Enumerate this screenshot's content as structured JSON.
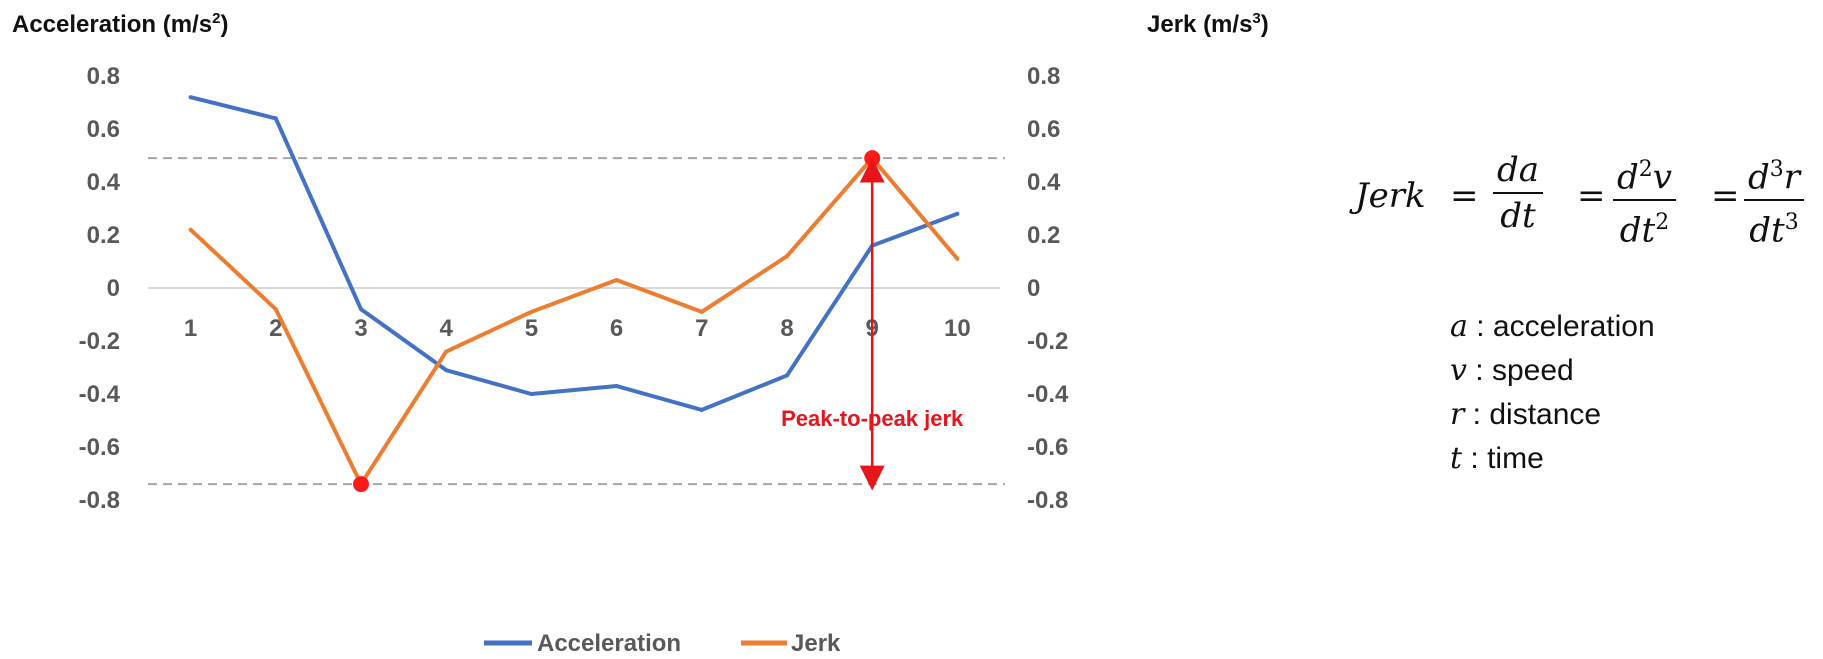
{
  "chart_data": {
    "type": "line",
    "categories": [
      "1",
      "2",
      "3",
      "4",
      "5",
      "6",
      "7",
      "8",
      "9",
      "10"
    ],
    "series": [
      {
        "name": "Acceleration",
        "axis": "left",
        "color": "#4472C4",
        "values": [
          0.72,
          0.64,
          -0.08,
          -0.31,
          -0.4,
          -0.37,
          -0.46,
          -0.33,
          0.16,
          0.28
        ]
      },
      {
        "name": "Jerk",
        "axis": "right",
        "color": "#ED7D31",
        "values": [
          0.22,
          -0.08,
          -0.74,
          -0.24,
          -0.09,
          0.03,
          -0.09,
          0.12,
          0.49,
          0.11
        ]
      }
    ],
    "ylabel_left": "Acceleration",
    "ylabel_left_unit": "(m/s",
    "ylabel_left_exp": "2",
    "ylabel_right": "Jerk",
    "ylabel_right_unit": "(m/s",
    "ylabel_right_exp": "3",
    "ylim": [
      -0.8,
      0.8
    ],
    "yticks": [
      "0.8",
      "0.6",
      "0.4",
      "0.2",
      "0",
      "-0.2",
      "-0.4",
      "-0.6",
      "-0.8"
    ],
    "ytick_values": [
      0.8,
      0.6,
      0.4,
      0.2,
      0,
      -0.2,
      -0.4,
      -0.6,
      -0.8
    ],
    "legend_position": "bottom",
    "annotation": {
      "text": "Peak-to-peak jerk",
      "color": "#E8141B",
      "max": 0.49,
      "min": -0.74,
      "max_index": 9,
      "min_index": 3
    },
    "grid": false
  },
  "formula": {
    "lhs": "Jerk",
    "eq": "=",
    "f1_num": "da",
    "f1_den": "dt",
    "f2_num": "d",
    "f2_num_exp": "2",
    "f2_num_var": "v",
    "f2_den": "dt",
    "f2_den_exp": "2",
    "f3_num": "d",
    "f3_num_exp": "3",
    "f3_num_var": "r",
    "f3_den": "dt",
    "f3_den_exp": "3"
  },
  "definitions": [
    {
      "var": "a",
      "sep": " : ",
      "text": "acceleration"
    },
    {
      "var": "v",
      "sep": " : ",
      "text": "speed"
    },
    {
      "var": "r",
      "sep": " : ",
      "text": "distance"
    },
    {
      "var": "t",
      "sep": " : ",
      "text": "time"
    }
  ]
}
